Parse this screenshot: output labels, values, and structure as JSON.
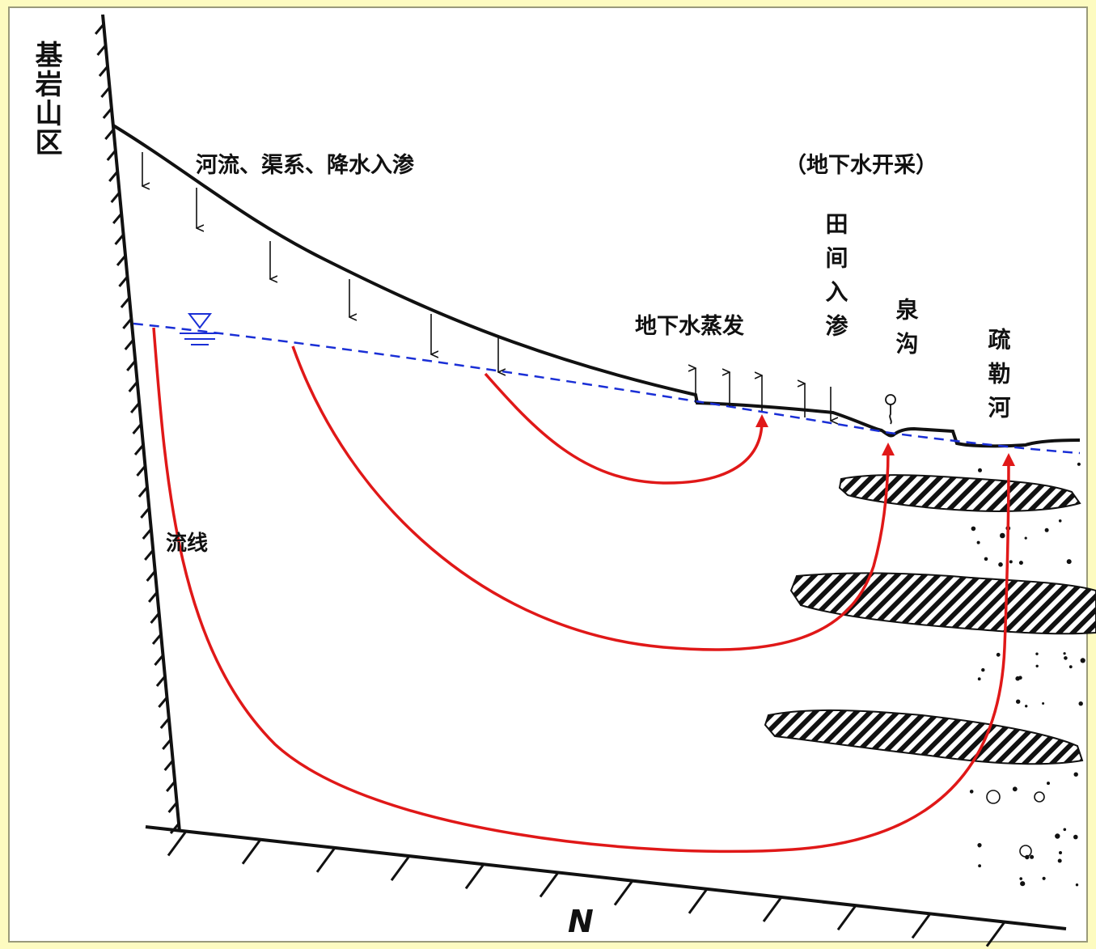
{
  "labels": {
    "bedrock": "基岩山区",
    "infiltration": "河流、渠系、降水入渗",
    "extraction": "（地下水开采）",
    "field": "田间入渗",
    "evaporation": "地下水蒸发",
    "spring": "泉沟",
    "river": "疏勒河",
    "flowline": "流线",
    "north": "N"
  },
  "colors": {
    "background": "#fdfbc0",
    "flow_line": "#e01818",
    "water_table": "#1a2fd6",
    "ground": "#111111"
  }
}
